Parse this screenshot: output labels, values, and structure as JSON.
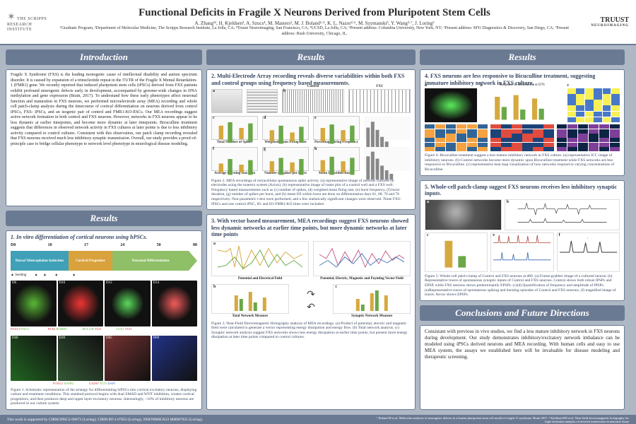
{
  "header": {
    "inst_name": "THE SCRIPPS RESEARCH INSTITUTE",
    "title": "Functional Deficits in Fragile X Neurons Derived from Pluripotent Stem Cells",
    "authors": "A. Zhang¹², H. Kjeldsen³, A. Szucs⁴, M. Masters³, M. J. Boland²·⁵, K. L. Nazor²·⁶, M. Szymanski⁵, Y. Wang²·⁷, J. Loring²",
    "affil": "¹Graduate Program, ²Department of Molecular Medicine, The Scripps Research Institute, La Jolla, CA; ³Truust Neuroimaging, San Francisco, CA; ⁴UCSD, La Jolla, CA; ⁵Present address: Columbia University, New York, NY; ⁶Present address: MYi Diagnostics & Discovery, San Diego, CA; ⁷Present address: Rush University, Chicago, IL.",
    "right_brand": "TRUUST",
    "right_sub": "NEUROIMAGING"
  },
  "sections": {
    "intro_title": "Introduction",
    "results_title": "Results",
    "concl_title": "Conclusions and Future Directions"
  },
  "intro_text": "Fragile X Syndrome (FXS) is the leading monogenic cause of intellectual disability and autism spectrum disorder. It is caused by expansion of a trinucleotide repeat in the 5'UTR of the Fragile X Mental Retardation-1 (FMR1) gene. We recently reported that induced pluripotent stem cells (iPSCs) derived from FXS patients exhibit profound neurogenic defects early in development, accompanied by genome-wide changes in DNA methylation and gene expression (Brain, 2017). To understand how these early phenotypes affect neuronal function and maturation in FXS neurons, we performed microelectrode array (MEA) recording and whole cell patch-clamp analysis during the timecourse of cortical differentiation on neurons derived from control iPSCs, FXS- iPSCs, and an isogenic pair of control and FMR1-KO-ESCs. Our MEA recordings suggest active network formation in both control and FXS neurons. However, networks in FXS neurons appear to be less dynamic at earlier timepoints, and become more dynamic at later timepoints. Bicuculline treatment suggests that differences in observed network activity in FXS cultures at later points is due to less inhibitory activity compared to control cultures. Consistent with this observation, our patch clamp recording revealed that FXS neurons received much less inhibitory synaptic transmission. Overall, our study provides a proof-of-principle case to bridge cellular phenotype to network level phenotype in neurological disease modeling.",
  "r1": {
    "head": "1. In vitro differentiation of cortical neurons using hPSCs.",
    "days": [
      "D0",
      "10",
      "17",
      "24",
      "50",
      "80"
    ],
    "stages": [
      {
        "label": "Dorsal Telencephalon Induction",
        "sub": "(SB431542, DM, XAV939)",
        "color": "#3fa0b7"
      },
      {
        "label": "Cortical Progenitor",
        "sub": "",
        "color": "#d9a23d"
      },
      {
        "label": "Neuronal Differentiation",
        "sub": "(BDNF, GDNF, VitC, cAMP)",
        "color": "#8fbf67"
      }
    ],
    "seeding": "Seeding",
    "panels_top": [
      "D6",
      "D10",
      "D12",
      "D14"
    ],
    "panels_bot": [
      "D46",
      "D49",
      "D65",
      "D69"
    ],
    "marker_labels": [
      "PAX6 FOXG1",
      "PAX6 EOMES",
      "BCL11B TUJ1",
      "CUX1 TUJ1",
      "FOXG1 SATB2",
      "GAD67 TUJ1 DAPI"
    ],
    "caption": "Figure 1. Schematic representation of the strategy for differentiating hiPSCs into cortical excitatory neurons, displaying culture and treatment conditions. This standard protocol begins with dual SMAD and WNT inhibition, creates cortical progenitors, and then produces deep and upper layer excitatory neurons. Interestingly, ~10% of inhibitory neurons are produced in our culture system."
  },
  "r2": {
    "head": "2. Multi-Electrode Array recording reveals diverse variabilities within both FXS and control groups using frequency based measurements.",
    "col_labels": [
      "",
      "Control",
      "FXS"
    ],
    "row_labels": [
      "a",
      "b"
    ],
    "metrics": [
      "Total Number of Spikes",
      "Weighted Mean Firing Rate",
      "Percentage Firing Frequency"
    ],
    "metrics2": [
      "Average Bursting Duration",
      "Number of Spikes per Burst",
      "Mean ISI within Bursts"
    ],
    "panel_letters": [
      "a",
      "b",
      "c",
      "d",
      "e",
      "f",
      "g",
      "h"
    ],
    "caption": "Figure 2. MEA recordings of extracellular spontaneous spike activity. (a) representative image of neurons cultured on electrodes using the maestro system (Axion). (b) representative image of raster plot of a control well and a FXS well. Frequency based measurements such as (c) number of spikes, (d) weighted mean firing rate, (e) burst frequency, (f) burst duration, (g) number of spikes per burst, and (h) mean ISI within burst are done on differentiation days 61, 68, 70 and 76 respectively. Non-parametric t-test were performed, and a few statistically significant changes were observed. Three FXS-iPSCs and one control iPSC, H1 and H1-FMR1-KO lines were included."
  },
  "r3": {
    "head": "3. With vector based measurement, MEA recordings suggest FXS neurons showed less dynamic networks at earlier time points, but more dynamic networks at later time points",
    "trace_labels": [
      "Potential and Electrical Field",
      "Potential, Electric, Magnetic and Poynting Vector Field"
    ],
    "chart_labels": [
      "Total Network Measure",
      "",
      "Synaptic Network Measure"
    ],
    "panel_letters": [
      "a",
      "b",
      "c",
      "d"
    ],
    "caption": "Figure 3. Near-Field Electromagnetic Holography analysis of MEA recordings. (a) Product of potential, electric and magnetic field were calculated to generate a vector representing energy dissipation and energy flow. (b) Total network analysis. (c) Synaptic network analysis suggest FXS networks shows less energy dissipation at earlier time points, but present more energy dissipation at later time points compared to control cultures."
  },
  "r4": {
    "head": "4. FXS neurons are less responsive to Bicuculline treatment, suggesting immature inhibitory network in FXS culture.",
    "sub": "Response to Bicuculline at D76",
    "panel_letters": [
      "a",
      "b",
      "c"
    ],
    "heatmap": {
      "rows": 6,
      "cols": 6,
      "palette": [
        "#f7f056",
        "#f4a242",
        "#e24c3f",
        "#7e3f98",
        "#4878c8",
        "#326596",
        "#1d4378",
        "#0d2445"
      ]
    },
    "caption": "Figure 4. Bicuculline treatment suggest a less mature inhibitory network in FXS culture. (a) representative ICC image of inhibitory neurons. (b) Control networks become more dynamic upon Bicuculline treatment while FXS networks are less responsive to Bicuculline. (c) representative heat map visualization of how networks respond to varying concentrations of Bicuculline."
  },
  "r5": {
    "head": "5. Whole-cell patch-clamp suggest FXS neurons receives less inhibitory synaptic inputs.",
    "panel_letters": [
      "a",
      "b",
      "c",
      "d",
      "e",
      "f"
    ],
    "caption": "Figure 5. Whole-cell patch-clamp of Control and FXS neurons at d80. (a) Frame-grabber image of a cultured neuron. (b) Representative traces of spontaneous synaptic inputs of Control and FXS neurons. Control shows both robust IPSPs and EPSP, while FXS neurons shows predominantly EPSPs. (c)(d) Quantification of frequency and amplitude of IPSPs. (e)Representative traces of spontaneous spiking and bursting episodes of Control and FXS neurons. (f) magnified image of traces. Arrow shows EPSPs."
  },
  "conclusions": "Consistant with previous in vivo studies, we find a less mature inhibitory network in FXS neurons during development. Our study demonstrates inhibitory/excitatory network imbalance can be modeled using iPSCs derived neurons and MEA recording. With human cells and easy to use MEA system, the assays we established here will be invaluable for disease modeling and therapeutic screening.",
  "footer": {
    "left": "This work is supported by CIRM DISC2-09073 (Loring); CIRM RT-3-07655 (Loring), NIH/NIMH R33 MH087925 (Loring).",
    "right": "¹ Boland M et al. Molecular analyses of neurogenic defects in a human pluripotent stem cell model of fragile X syndrome. Brain 2017. ² Kjeldsen HD et al. Near-field electromagnetic holography for high-resolution analysis of network interactions in neuronal tissue"
  },
  "colors": {
    "bg": "#aeb8c5",
    "header_border": "#6b7a93",
    "section_border": "#6b7a93",
    "accent_dark": "#35455f",
    "ctrl": "#d6a93f",
    "fxs": "#6aa848"
  }
}
